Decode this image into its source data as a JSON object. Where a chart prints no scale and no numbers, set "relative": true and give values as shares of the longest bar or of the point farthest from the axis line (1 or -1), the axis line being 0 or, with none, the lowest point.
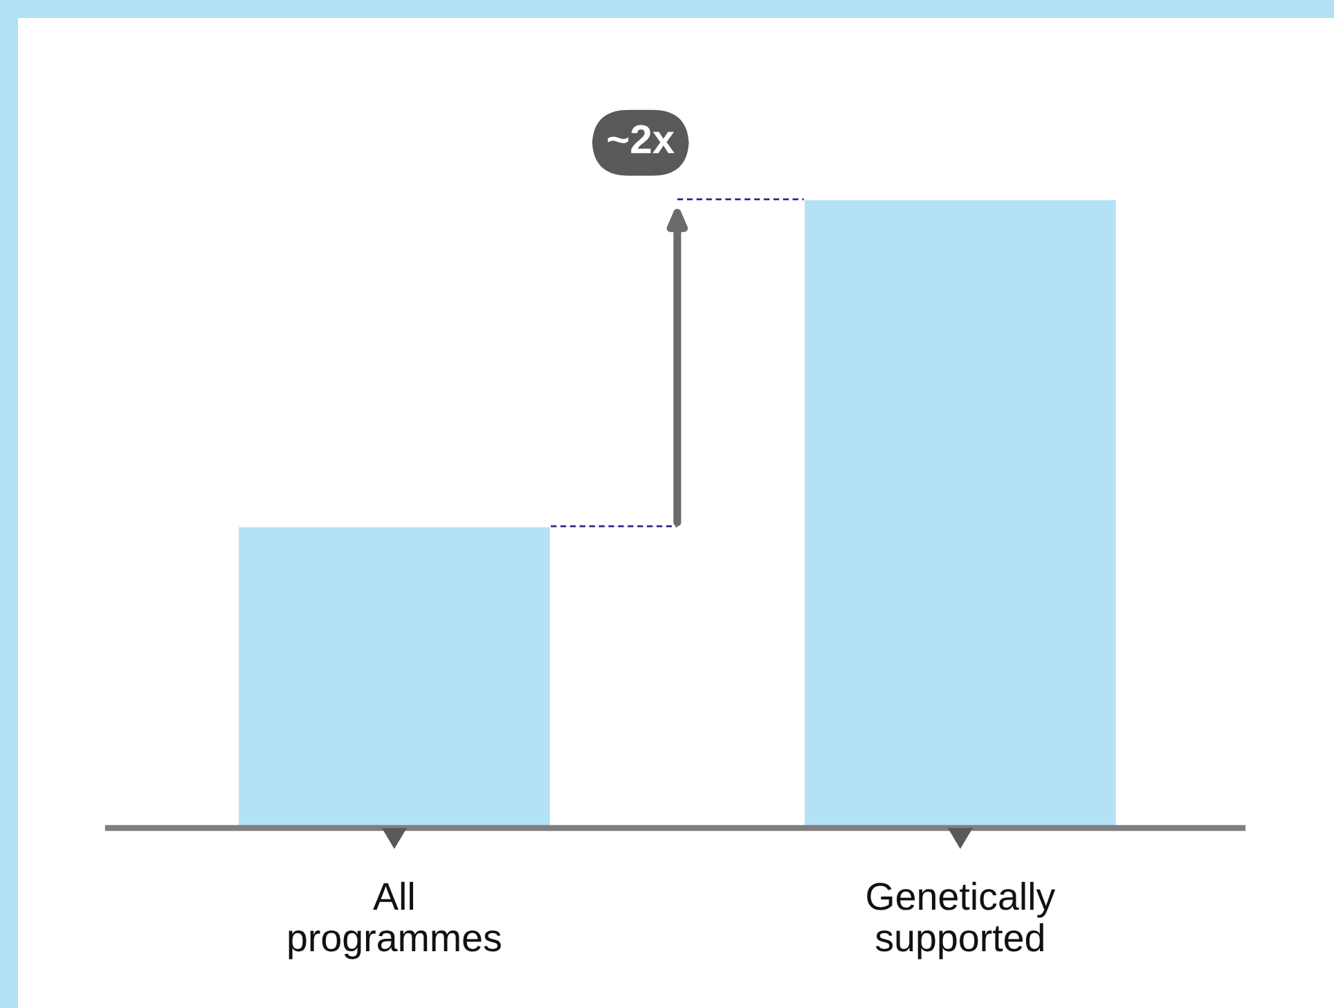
{
  "chart_data": {
    "type": "bar",
    "relative": true,
    "categories": [
      "All\nprogrammes",
      "Genetically\nsupported"
    ],
    "values": [
      0.48,
      1
    ],
    "color": "#b3e1f5",
    "annotations": [
      "~2x"
    ]
  }
}
